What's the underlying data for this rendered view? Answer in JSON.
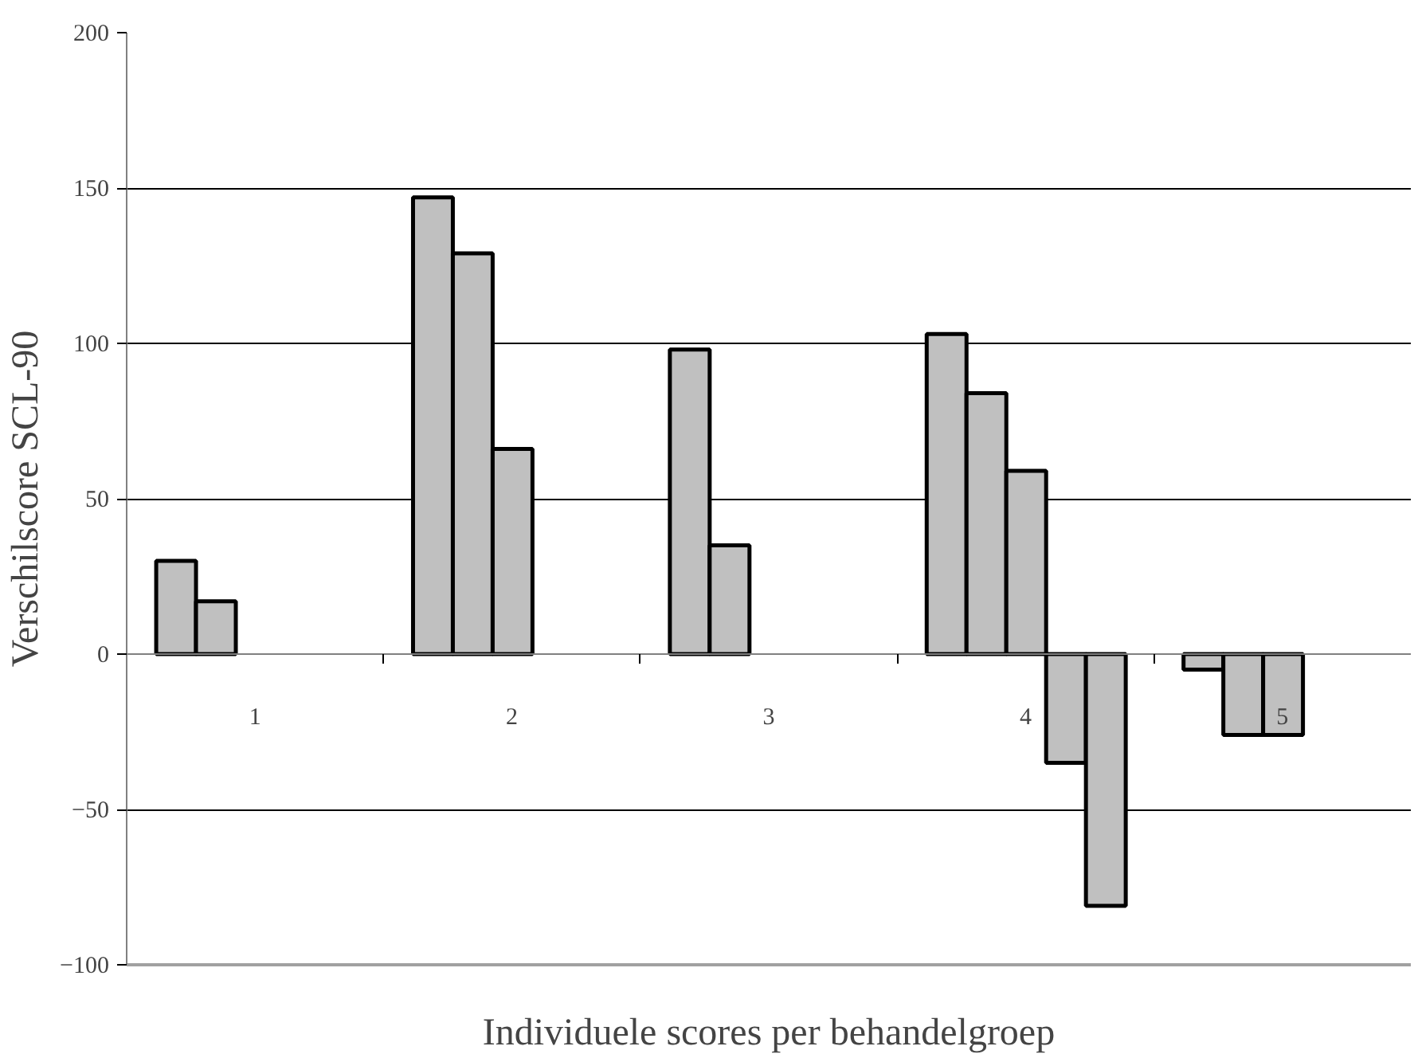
{
  "chart_data": {
    "type": "bar",
    "xlabel": "Individuele scores per behandelgroep",
    "ylabel": "Verschilscore SCL-90",
    "categories": [
      "1",
      "2",
      "3",
      "4",
      "5"
    ],
    "series": [
      {
        "color": "#c0c0c0",
        "values": [
          30,
          147,
          98,
          103,
          -5
        ]
      },
      {
        "color": "#c0c0c0",
        "values": [
          17,
          129,
          35,
          84,
          -26
        ]
      },
      {
        "color": "#c0c0c0",
        "values": [
          null,
          66,
          null,
          59,
          -26
        ]
      },
      {
        "color": "#c0c0c0",
        "values": [
          null,
          null,
          null,
          -35,
          null
        ]
      },
      {
        "color": "#c0c0c0",
        "values": [
          null,
          null,
          null,
          -81,
          null
        ]
      }
    ],
    "ylim": [
      -100,
      200
    ],
    "yticks": [
      -100,
      -50,
      0,
      50,
      100,
      150,
      200
    ],
    "grid": "y"
  }
}
